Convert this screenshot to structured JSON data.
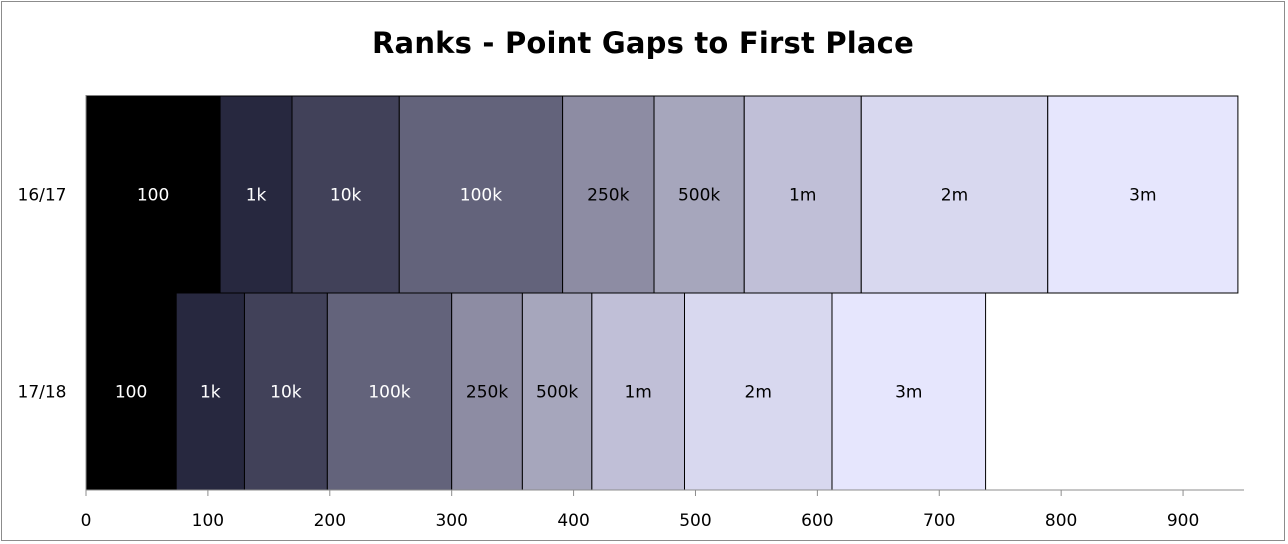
{
  "chart_data": {
    "type": "bar",
    "orientation": "horizontal",
    "stacked": true,
    "title": "Ranks - Point Gaps to First Place",
    "xlabel": "",
    "ylabel": "",
    "xlim": [
      0,
      950
    ],
    "xticks": [
      0,
      100,
      200,
      300,
      400,
      500,
      600,
      700,
      800,
      900
    ],
    "grid": false,
    "legend": "none",
    "categories": [
      "16/17",
      "17/18"
    ],
    "series": [
      {
        "label": "100",
        "color": "#000000",
        "label_color": "#ffffff",
        "values": [
          110,
          74
        ]
      },
      {
        "label": "1k",
        "color": "#27283f",
        "label_color": "#ffffff",
        "values": [
          59,
          56
        ]
      },
      {
        "label": "10k",
        "color": "#414159",
        "label_color": "#ffffff",
        "values": [
          88,
          68
        ]
      },
      {
        "label": "100k",
        "color": "#63637b",
        "label_color": "#ffffff",
        "values": [
          134,
          102
        ]
      },
      {
        "label": "250k",
        "color": "#8d8ca3",
        "label_color": "#000000",
        "values": [
          75,
          58
        ]
      },
      {
        "label": "500k",
        "color": "#a6a6bc",
        "label_color": "#000000",
        "values": [
          74,
          57
        ]
      },
      {
        "label": "1m",
        "color": "#c0bfd7",
        "label_color": "#000000",
        "values": [
          96,
          76
        ]
      },
      {
        "label": "2m",
        "color": "#d8d8ef",
        "label_color": "#000000",
        "values": [
          153,
          121
        ]
      },
      {
        "label": "3m",
        "color": "#e6e6fd",
        "label_color": "#000000",
        "values": [
          156,
          126
        ]
      }
    ]
  }
}
